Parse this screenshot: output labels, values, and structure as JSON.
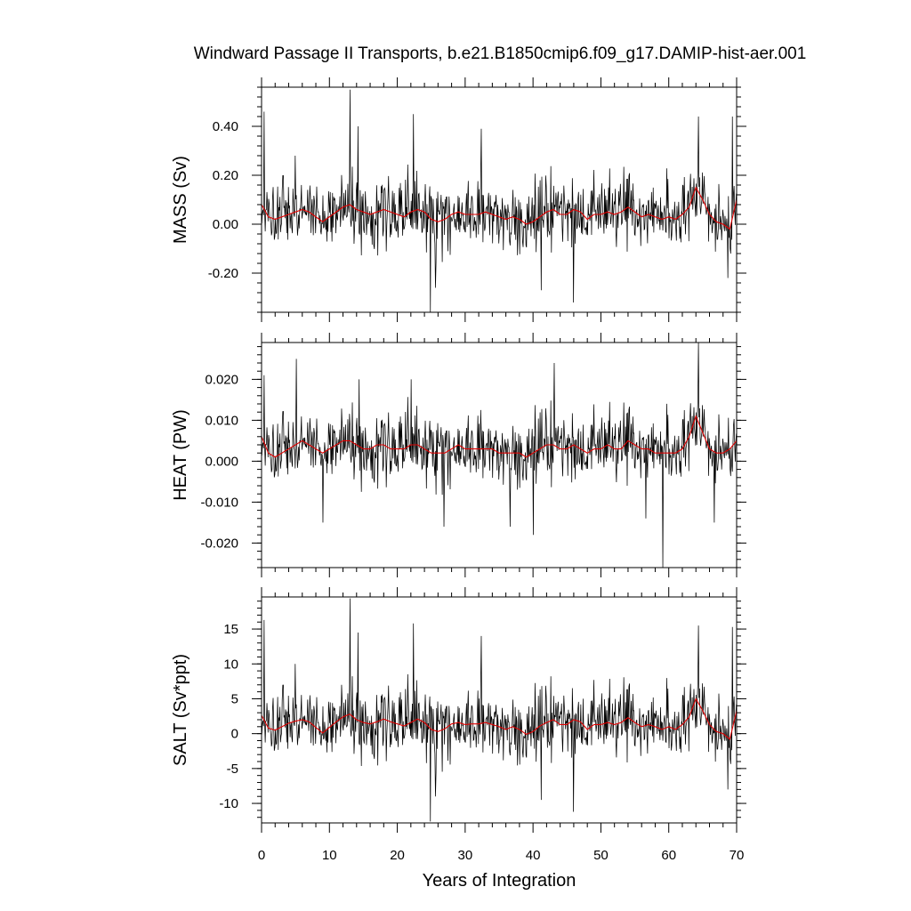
{
  "chart_data": {
    "type": "line",
    "title": "Windward Passage II Transports, b.e21.B1850cmip6.f09_g17.DAMIP-hist-aer.001",
    "xlabel": "Years of Integration",
    "xlim": [
      0,
      70
    ],
    "x_ticks": [
      0,
      10,
      20,
      30,
      40,
      50,
      60,
      70
    ],
    "x_tick_labels": [
      "0",
      "10",
      "20",
      "30",
      "40",
      "50",
      "60",
      "70"
    ],
    "colors": {
      "monthly": "#000000",
      "smoothed": "#e00000"
    },
    "panels": [
      {
        "ylabel": "MASS (Sv)",
        "ylim": [
          -0.36,
          0.56
        ],
        "y_ticks": [
          -0.2,
          0.0,
          0.2,
          0.4
        ],
        "y_tick_labels": [
          "-0.20",
          "0.00",
          "0.20",
          "0.40"
        ],
        "y_minor_step": 0.04,
        "smooth_years": [
          0,
          1,
          2,
          3,
          4,
          5,
          6,
          7,
          8,
          9,
          10,
          11,
          12,
          13,
          14,
          15,
          16,
          17,
          18,
          19,
          20,
          21,
          22,
          23,
          24,
          25,
          26,
          27,
          28,
          29,
          30,
          31,
          32,
          33,
          34,
          35,
          36,
          37,
          38,
          39,
          40,
          41,
          42,
          43,
          44,
          45,
          46,
          47,
          48,
          49,
          50,
          51,
          52,
          53,
          54,
          55,
          56,
          57,
          58,
          59,
          60,
          61,
          62,
          63,
          64,
          65,
          66,
          67,
          68,
          69,
          70
        ],
        "smooth_values": [
          0.08,
          0.03,
          0.02,
          0.03,
          0.04,
          0.05,
          0.06,
          0.05,
          0.03,
          0.01,
          0.03,
          0.05,
          0.07,
          0.08,
          0.06,
          0.05,
          0.04,
          0.05,
          0.06,
          0.05,
          0.04,
          0.03,
          0.05,
          0.06,
          0.05,
          0.02,
          0.01,
          0.02,
          0.04,
          0.05,
          0.04,
          0.04,
          0.04,
          0.05,
          0.04,
          0.03,
          0.02,
          0.03,
          0.02,
          0.0,
          0.01,
          0.03,
          0.05,
          0.06,
          0.04,
          0.04,
          0.06,
          0.05,
          0.02,
          0.04,
          0.04,
          0.05,
          0.04,
          0.05,
          0.07,
          0.05,
          0.03,
          0.04,
          0.03,
          0.02,
          0.03,
          0.02,
          0.04,
          0.07,
          0.15,
          0.1,
          0.04,
          0.01,
          0.0,
          -0.02,
          0.1
        ],
        "spikes": [
          [
            0.3,
            0.46
          ],
          [
            4.9,
            0.28
          ],
          [
            13.0,
            0.55
          ],
          [
            14.2,
            0.4
          ],
          [
            22.3,
            0.45
          ],
          [
            24.8,
            -0.36
          ],
          [
            25.6,
            -0.26
          ],
          [
            32.3,
            0.39
          ],
          [
            41.2,
            -0.27
          ],
          [
            45.9,
            -0.32
          ],
          [
            64.3,
            0.44
          ],
          [
            68.7,
            -0.22
          ],
          [
            69.3,
            0.44
          ]
        ]
      },
      {
        "ylabel": "HEAT (PW)",
        "ylim": [
          -0.026,
          0.029
        ],
        "y_ticks": [
          -0.02,
          -0.01,
          0.0,
          0.01,
          0.02
        ],
        "y_tick_labels": [
          "-0.020",
          "-0.010",
          "0.000",
          "0.010",
          "0.020"
        ],
        "y_minor_step": 0.002,
        "smooth_years": [
          0,
          1,
          2,
          3,
          4,
          5,
          6,
          7,
          8,
          9,
          10,
          11,
          12,
          13,
          14,
          15,
          16,
          17,
          18,
          19,
          20,
          21,
          22,
          23,
          24,
          25,
          26,
          27,
          28,
          29,
          30,
          31,
          32,
          33,
          34,
          35,
          36,
          37,
          38,
          39,
          40,
          41,
          42,
          43,
          44,
          45,
          46,
          47,
          48,
          49,
          50,
          51,
          52,
          53,
          54,
          55,
          56,
          57,
          58,
          59,
          60,
          61,
          62,
          63,
          64,
          65,
          66,
          67,
          68,
          69,
          70
        ],
        "smooth_values": [
          0.006,
          0.002,
          0.001,
          0.002,
          0.003,
          0.004,
          0.005,
          0.004,
          0.003,
          0.002,
          0.003,
          0.004,
          0.005,
          0.005,
          0.004,
          0.003,
          0.003,
          0.004,
          0.004,
          0.003,
          0.003,
          0.003,
          0.004,
          0.004,
          0.003,
          0.002,
          0.002,
          0.002,
          0.003,
          0.004,
          0.003,
          0.003,
          0.003,
          0.003,
          0.003,
          0.002,
          0.002,
          0.002,
          0.002,
          0.001,
          0.002,
          0.003,
          0.004,
          0.004,
          0.003,
          0.003,
          0.004,
          0.003,
          0.002,
          0.003,
          0.003,
          0.004,
          0.003,
          0.003,
          0.005,
          0.004,
          0.003,
          0.003,
          0.002,
          0.002,
          0.002,
          0.002,
          0.003,
          0.006,
          0.011,
          0.007,
          0.003,
          0.002,
          0.002,
          0.003,
          0.005
        ],
        "spikes": [
          [
            0.3,
            0.021
          ],
          [
            5.1,
            0.025
          ],
          [
            9.0,
            -0.015
          ],
          [
            14.3,
            0.02
          ],
          [
            22.0,
            0.02
          ],
          [
            26.8,
            -0.016
          ],
          [
            36.6,
            -0.016
          ],
          [
            40.0,
            -0.018
          ],
          [
            43.1,
            0.024
          ],
          [
            56.6,
            -0.014
          ],
          [
            59.1,
            -0.026
          ],
          [
            64.3,
            0.029
          ],
          [
            66.7,
            -0.015
          ]
        ]
      },
      {
        "ylabel": "SALT (Sv*ppt)",
        "ylim": [
          -12.8,
          19.6
        ],
        "y_ticks": [
          -10,
          -5,
          0,
          5,
          10,
          15
        ],
        "y_tick_labels": [
          "-10",
          "-5",
          "0",
          "5",
          "10",
          "15"
        ],
        "y_minor_step": 1,
        "smooth_years": [
          0,
          1,
          2,
          3,
          4,
          5,
          6,
          7,
          8,
          9,
          10,
          11,
          12,
          13,
          14,
          15,
          16,
          17,
          18,
          19,
          20,
          21,
          22,
          23,
          24,
          25,
          26,
          27,
          28,
          29,
          30,
          31,
          32,
          33,
          34,
          35,
          36,
          37,
          38,
          39,
          40,
          41,
          42,
          43,
          44,
          45,
          46,
          47,
          48,
          49,
          50,
          51,
          52,
          53,
          54,
          55,
          56,
          57,
          58,
          59,
          60,
          61,
          62,
          63,
          64,
          65,
          66,
          67,
          68,
          69,
          70
        ],
        "smooth_values": [
          2.6,
          0.8,
          0.5,
          1.0,
          1.5,
          1.8,
          2.0,
          1.7,
          0.9,
          0.1,
          0.9,
          1.7,
          2.4,
          2.8,
          2.0,
          1.6,
          1.4,
          1.7,
          2.1,
          1.7,
          1.4,
          1.1,
          1.6,
          2.1,
          1.6,
          0.6,
          0.3,
          0.7,
          1.4,
          1.6,
          1.3,
          1.4,
          1.4,
          1.6,
          1.3,
          1.0,
          0.6,
          1.0,
          0.6,
          -0.1,
          0.3,
          1.1,
          1.6,
          2.0,
          1.3,
          1.3,
          2.0,
          1.7,
          0.6,
          1.3,
          1.3,
          1.6,
          1.3,
          1.6,
          2.3,
          1.6,
          1.0,
          1.3,
          1.0,
          0.6,
          1.0,
          0.6,
          1.3,
          2.4,
          5.0,
          3.3,
          1.3,
          0.3,
          0.0,
          -0.8,
          3.3
        ],
        "spikes": [
          [
            0.3,
            16.3
          ],
          [
            4.9,
            10.0
          ],
          [
            13.0,
            19.4
          ],
          [
            14.2,
            14.5
          ],
          [
            22.3,
            15.8
          ],
          [
            24.8,
            -12.6
          ],
          [
            25.6,
            -9.0
          ],
          [
            32.3,
            14.0
          ],
          [
            41.2,
            -9.5
          ],
          [
            45.9,
            -11.2
          ],
          [
            64.3,
            15.5
          ],
          [
            68.7,
            -8.0
          ],
          [
            69.3,
            15.3
          ]
        ]
      }
    ]
  }
}
